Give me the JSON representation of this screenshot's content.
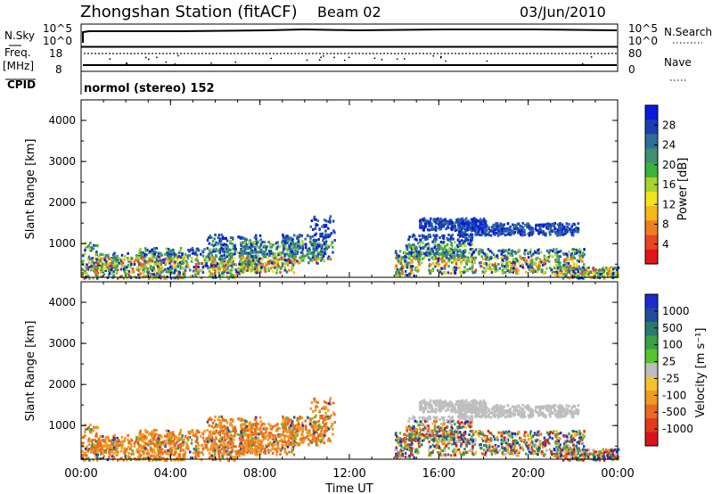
{
  "header": {
    "station": "Zhongshan Station (fitACF)",
    "beam": "Beam 02",
    "date": "03/Jun/2010"
  },
  "status_panels": {
    "nsky_label": "N.Sky",
    "nsearch_label": "N.Search",
    "freq_label_1": "Freq.",
    "freq_label_2": "[MHz]",
    "nave_label": "Nave",
    "cpid_label": "CPID",
    "cpid_value": "normol (stereo) 152",
    "nsky_top": "10^5",
    "nsky_bottom": "10^0",
    "nsearch_top": "10^5",
    "nsearch_bottom": "10^0",
    "freq_top": "18",
    "freq_bottom": "8",
    "nave_top": "80",
    "nave_bottom": "0"
  },
  "chart_data": [
    {
      "type": "heatmap",
      "name": "power",
      "ylabel": "Slant Range [km]",
      "colorbar_label": "Power [dB]",
      "colorbar_ticks": [
        "28",
        "24",
        "20",
        "16",
        "12",
        "8",
        "4"
      ],
      "colors": [
        "#0a1adc",
        "#1a40b0",
        "#2f6e96",
        "#3e9070",
        "#39b43a",
        "#a7d42a",
        "#f2e31c",
        "#f7b81b",
        "#ef7e22",
        "#e8461e",
        "#e0141a"
      ],
      "y_ticks": [
        "4000",
        "3000",
        "2000",
        "1000"
      ],
      "ylim": [
        180,
        4500
      ]
    },
    {
      "type": "heatmap",
      "name": "velocity",
      "ylabel": "Slant Range [km]",
      "colorbar_label": "Velocity [m s⁻¹]",
      "colorbar_ticks": [
        "1000",
        "500",
        "100",
        "25",
        "-25",
        "-100",
        "-500",
        "-1000"
      ],
      "colors": [
        "#1f2acb",
        "#1f4c9e",
        "#2a7a6e",
        "#3aa046",
        "#57c32e",
        "#bebebe",
        "#f4c22a",
        "#f09a22",
        "#ea6a1e",
        "#e23a1a",
        "#d8141a"
      ],
      "y_ticks": [
        "4000",
        "3000",
        "2000",
        "1000"
      ],
      "ylim": [
        180,
        4500
      ]
    }
  ],
  "x_axis": {
    "ticks": [
      "00:00",
      "04:00",
      "08:00",
      "12:00",
      "16:00",
      "20:00",
      "00:00"
    ],
    "label": "Time UT",
    "xlim_hours": [
      0,
      24
    ]
  }
}
